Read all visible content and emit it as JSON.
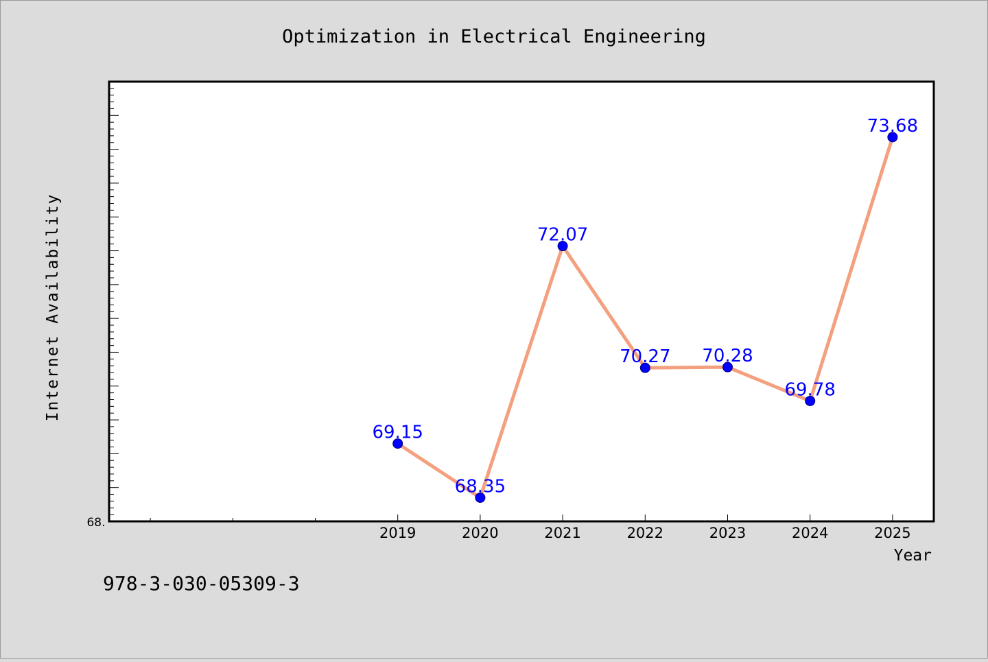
{
  "chart_data": {
    "type": "line",
    "title": "Optimization in Electrical Engineering",
    "xlabel": "Year",
    "ylabel": "Internet Availability",
    "x": [
      "2019",
      "2020",
      "2021",
      "2022",
      "2023",
      "2024",
      "2025"
    ],
    "series": [
      {
        "values": [
          69.15,
          68.35,
          72.07,
          70.27,
          70.28,
          69.78,
          73.68
        ],
        "labels": [
          "69.15",
          "68.35",
          "72.07",
          "70.27",
          "70.28",
          "69.78",
          "73.68"
        ]
      }
    ],
    "xlim": [
      2015.5,
      2025.5
    ],
    "ylim": [
      68.0,
      74.5
    ],
    "y_tick_label": "68.",
    "grid": false,
    "line_color": "#f4a07e",
    "marker_color": "#0000ff",
    "label_color": "#0000ff"
  },
  "footer": {
    "serial": "978-3-030-05309-3"
  }
}
